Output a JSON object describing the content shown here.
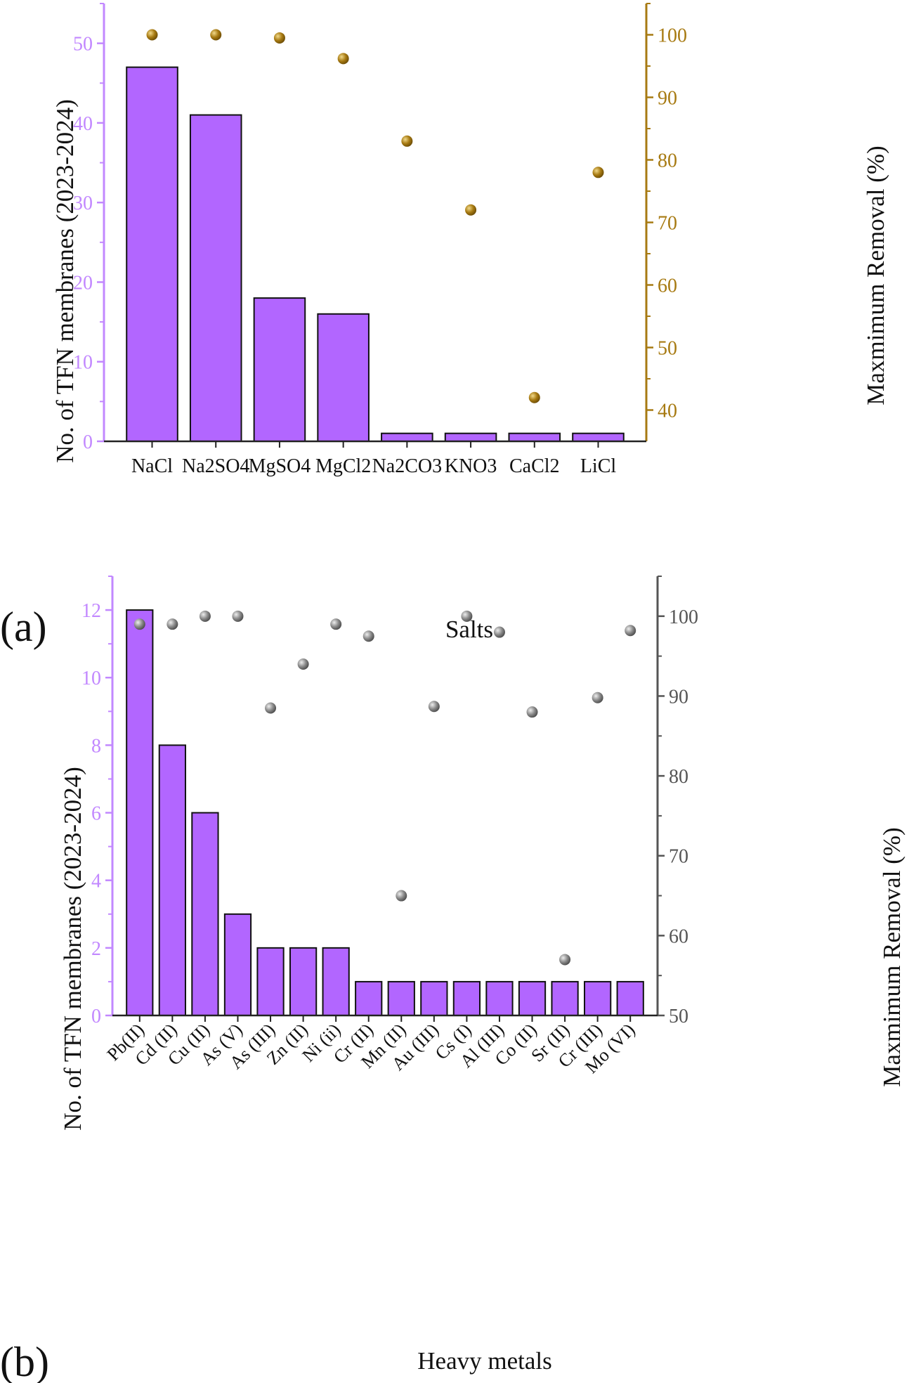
{
  "colors": {
    "bar": "#b266ff",
    "bar_stroke": "#111111",
    "left_axis": "#c288ff",
    "right_axis_a": "#a77a12",
    "right_axis_b": "#555555",
    "dot_a": "#a77a12",
    "dot_b": "#8a8a8a"
  },
  "chart_data": [
    {
      "panel_label": "(a)",
      "type": "bar",
      "xlabel": "Salts",
      "ylabel": "No. of TFN membranes (2023-2024)",
      "y2label": "Maxmimum Removal (%)",
      "categories": [
        "NaCl",
        "Na2SO4",
        "MgSO4",
        "MgCl2",
        "Na2CO3",
        "KNO3",
        "CaCl2",
        "LiCl"
      ],
      "series": [
        {
          "type": "bar",
          "axis": "left",
          "values": [
            47,
            41,
            18,
            16,
            1,
            1,
            1,
            1
          ]
        },
        {
          "type": "scatter",
          "axis": "right",
          "values": [
            100,
            100,
            99.5,
            96.2,
            83,
            72,
            42,
            78
          ]
        }
      ],
      "ylim": [
        0,
        55
      ],
      "yticks": [
        0,
        10,
        20,
        30,
        40,
        50
      ],
      "y2lim": [
        35,
        105
      ],
      "y2ticks": [
        40,
        50,
        60,
        70,
        80,
        90,
        100
      ]
    },
    {
      "panel_label": "(b)",
      "type": "bar",
      "xlabel": "Heavy metals",
      "ylabel": "No. of TFN membranes (2023-2024)",
      "y2label": "Maxmimum Removal (%)",
      "categories": [
        "Pb(II)",
        "Cd (II)",
        "Cu (II)",
        "As (V)",
        "As (III)",
        "Zn (II)",
        "Ni (ii)",
        "Cr (II)",
        "Mn (II)",
        "Au (III)",
        "Cs (I)",
        "Al (III)",
        "Co (II)",
        "Sr (II)",
        "Cr (III)",
        "Mo (VI)"
      ],
      "series": [
        {
          "type": "bar",
          "axis": "left",
          "values": [
            12,
            8,
            6,
            3,
            2,
            2,
            2,
            1,
            1,
            1,
            1,
            1,
            1,
            1,
            1,
            1
          ]
        },
        {
          "type": "scatter",
          "axis": "right",
          "values": [
            99,
            99,
            100,
            100,
            88.5,
            94,
            99,
            97.5,
            65,
            88.7,
            100,
            98,
            88,
            57,
            89.8,
            98.2
          ]
        }
      ],
      "ylim": [
        0,
        13
      ],
      "yticks": [
        0,
        2,
        4,
        6,
        8,
        10,
        12
      ],
      "y2lim": [
        50,
        105
      ],
      "y2ticks": [
        50,
        60,
        70,
        80,
        90,
        100
      ]
    }
  ]
}
